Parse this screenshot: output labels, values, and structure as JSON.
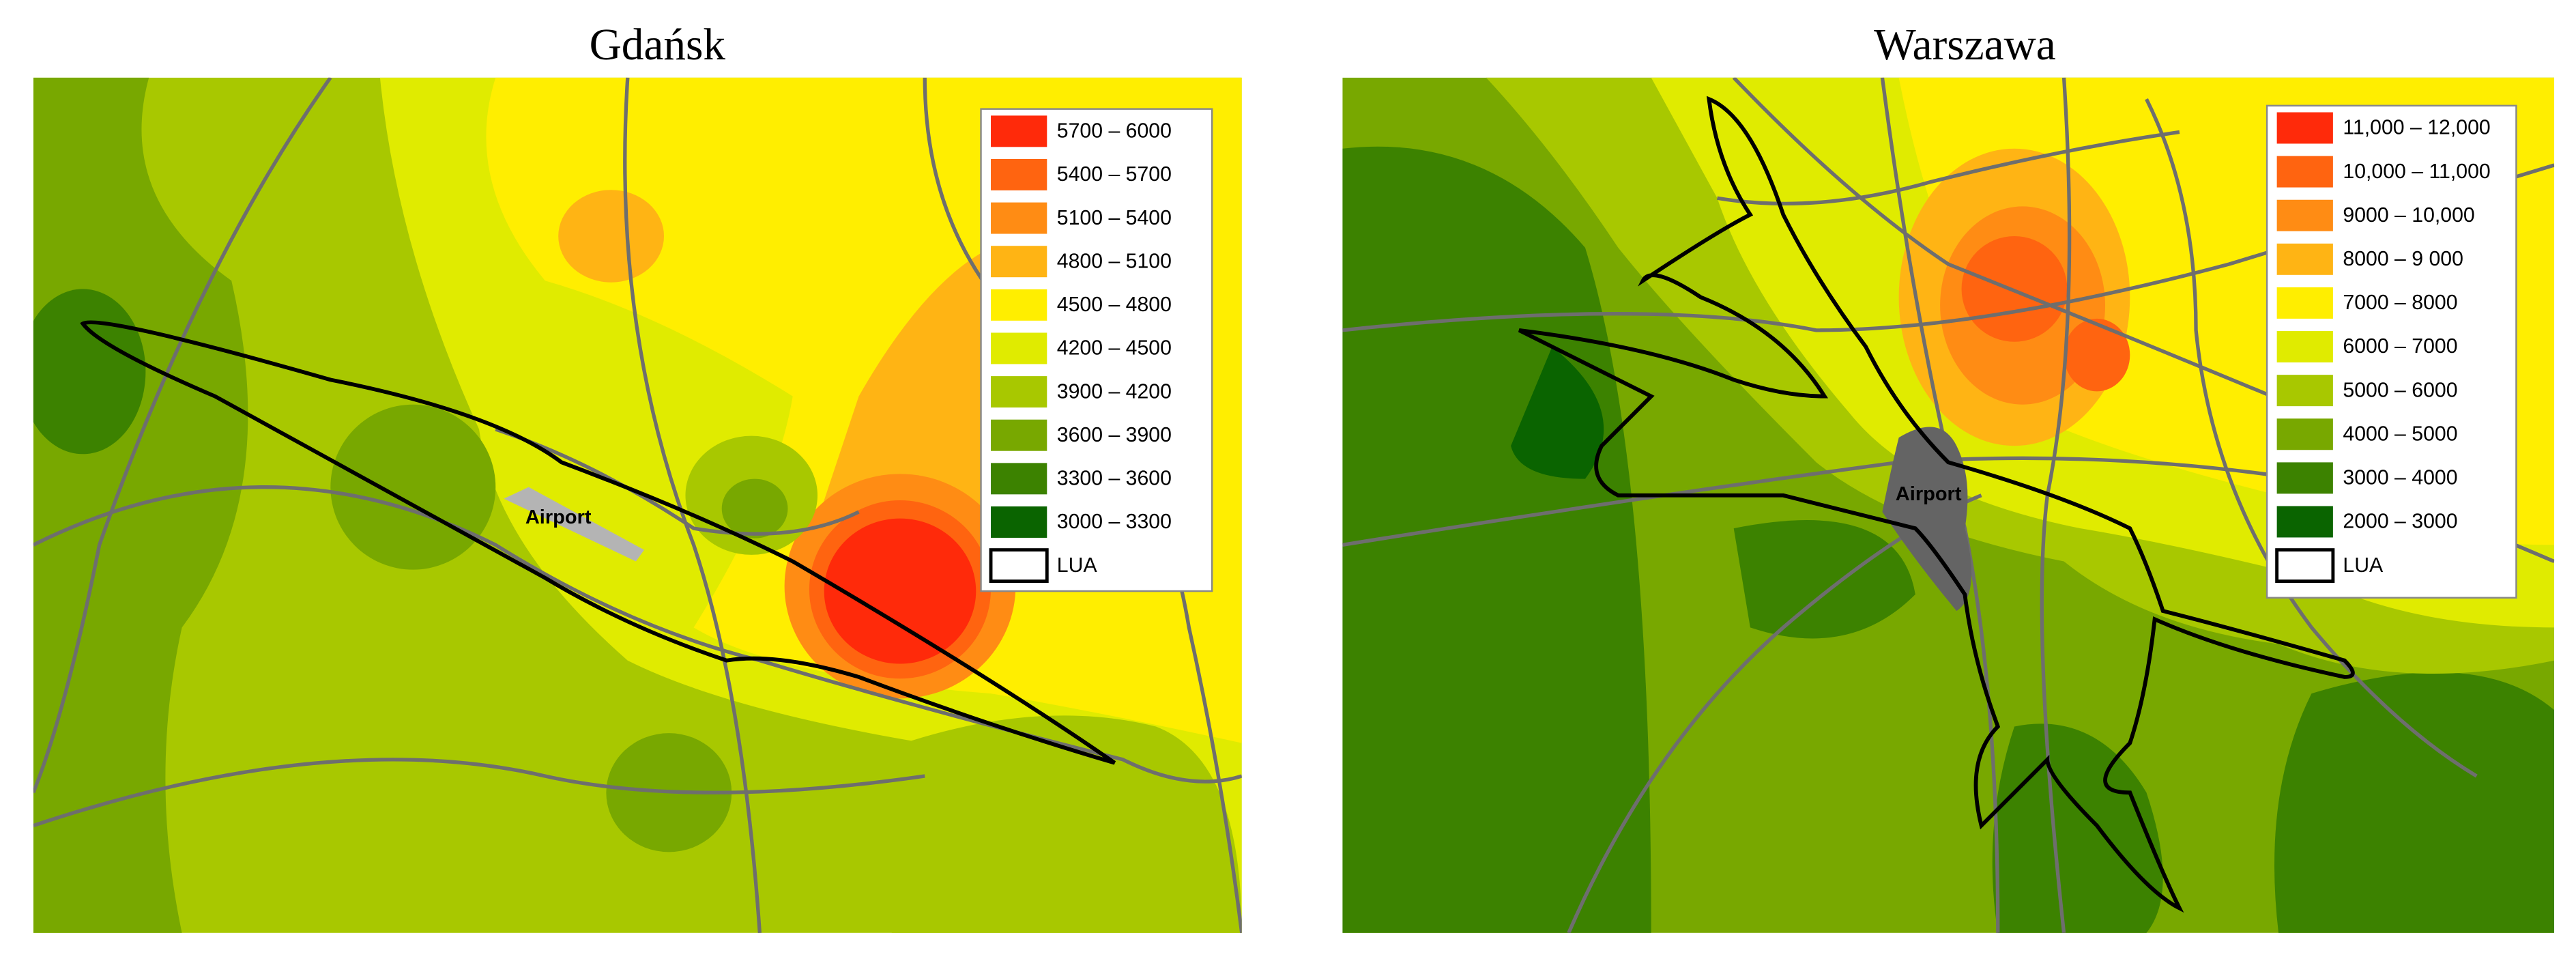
{
  "maps": [
    {
      "title": "Gdańsk",
      "airport_label": "Airport",
      "legend": [
        {
          "label": "5700 – 6000",
          "color": "#ff2a0a"
        },
        {
          "label": "5400 – 5700",
          "color": "#ff6410"
        },
        {
          "label": "5100 – 5400",
          "color": "#ff8c14"
        },
        {
          "label": "4800 – 5100",
          "color": "#ffb414"
        },
        {
          "label": "4500 – 4800",
          "color": "#ffee00"
        },
        {
          "label": "4200 – 4500",
          "color": "#e0eb00"
        },
        {
          "label": "3900 – 4200",
          "color": "#a8c800"
        },
        {
          "label": "3600 – 3900",
          "color": "#78a800"
        },
        {
          "label": "3300 – 3600",
          "color": "#3c8200"
        },
        {
          "label": "3000 – 3300",
          "color": "#0a6400"
        },
        {
          "label": "LUA",
          "color": "#ffffff"
        }
      ]
    },
    {
      "title": "Warszawa",
      "airport_label": "Airport",
      "legend": [
        {
          "label": "11,000 – 12,000",
          "color": "#ff2a0a"
        },
        {
          "label": "10,000 – 11,000",
          "color": "#ff6410"
        },
        {
          "label": "9000 – 10,000",
          "color": "#ff8c14"
        },
        {
          "label": "8000 – 9 000",
          "color": "#ffb414"
        },
        {
          "label": "7000 – 8000",
          "color": "#ffee00"
        },
        {
          "label": "6000 – 7000",
          "color": "#e0eb00"
        },
        {
          "label": "5000 – 6000",
          "color": "#a8c800"
        },
        {
          "label": "4000 – 5000",
          "color": "#78a800"
        },
        {
          "label": "3000 – 4000",
          "color": "#3c8200"
        },
        {
          "label": "2000 – 3000",
          "color": "#0a6400"
        },
        {
          "label": "LUA",
          "color": "#ffffff"
        }
      ]
    }
  ]
}
